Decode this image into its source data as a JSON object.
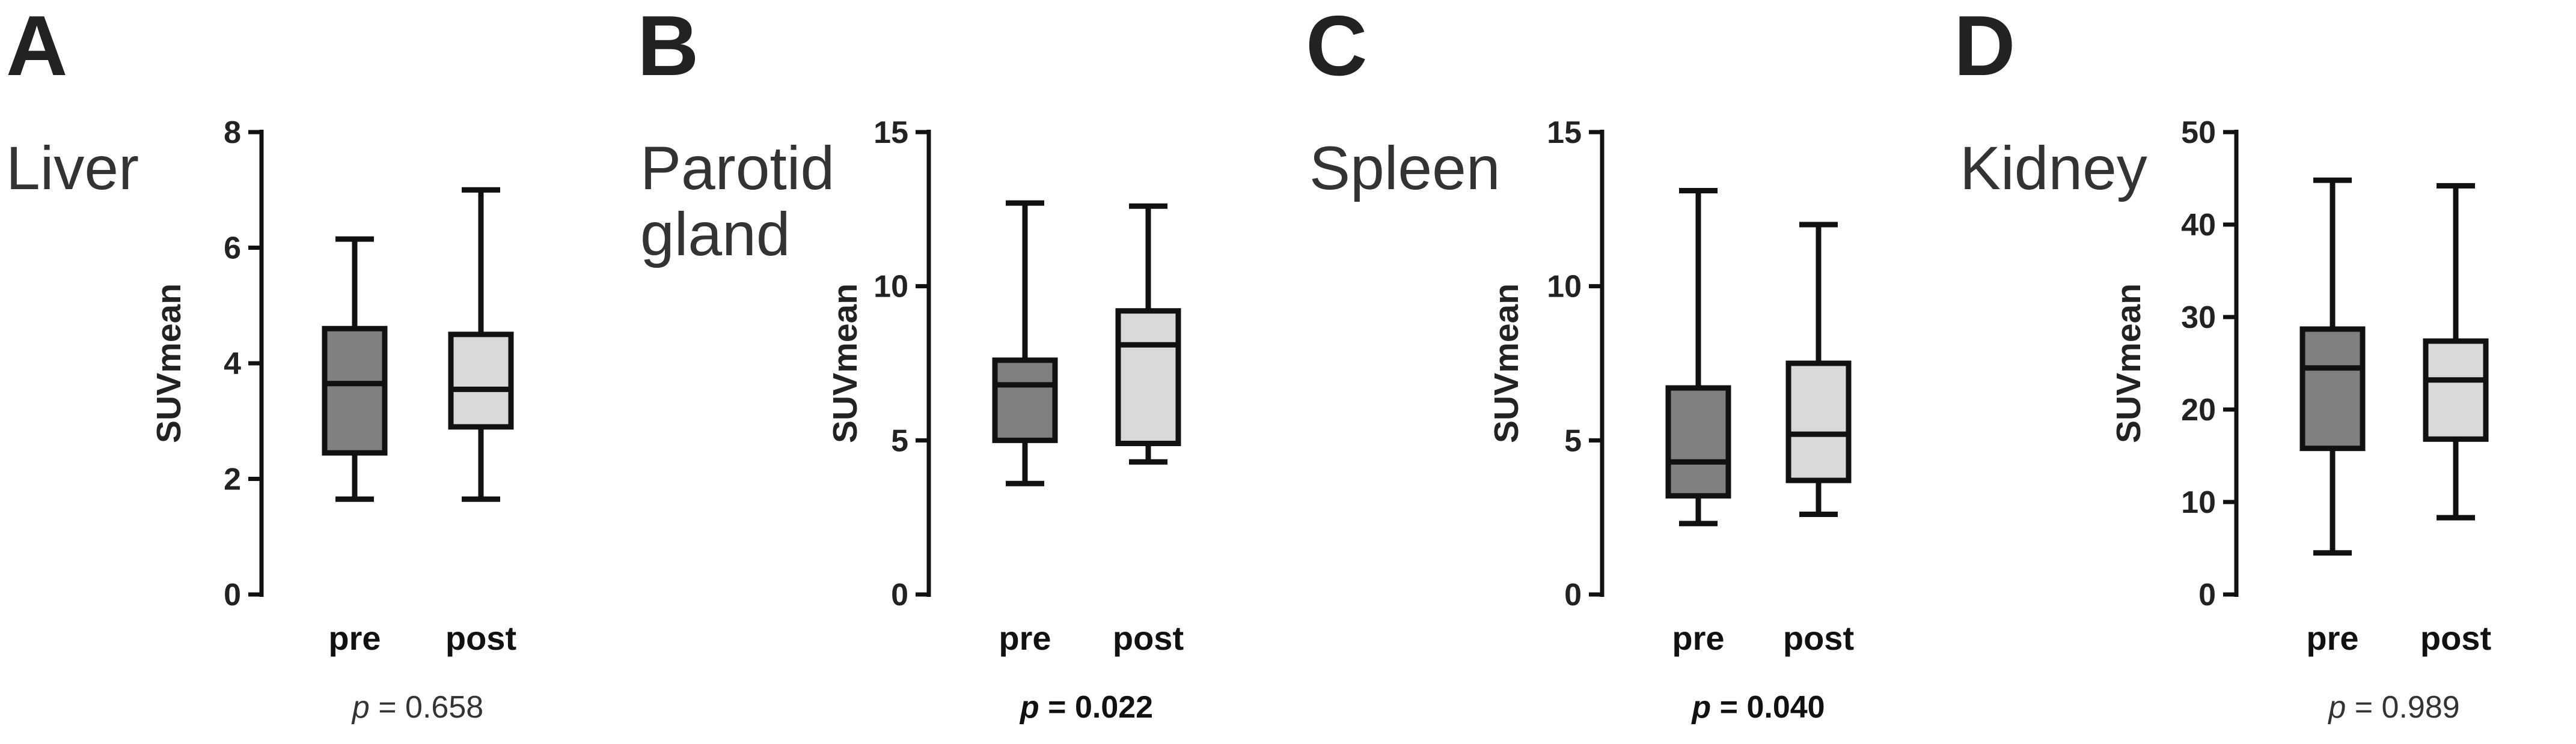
{
  "chart_data": [
    {
      "type": "box",
      "panel": "A",
      "title": "Liver",
      "ylabel": "SUVmean",
      "ylim": [
        0,
        8
      ],
      "yticks": [
        0,
        2,
        4,
        6,
        8
      ],
      "categories": [
        "pre",
        "post"
      ],
      "boxes": [
        {
          "category": "pre",
          "min": 1.65,
          "q1": 2.45,
          "median": 3.65,
          "q3": 4.6,
          "max": 6.15
        },
        {
          "category": "post",
          "min": 1.65,
          "q1": 2.9,
          "median": 3.55,
          "q3": 4.5,
          "max": 7.0
        }
      ],
      "p_label": "p",
      "p_text": " = 0.658",
      "p_significant": false
    },
    {
      "type": "box",
      "panel": "B",
      "title_lines": [
        "Parotid",
        "gland"
      ],
      "ylabel": "SUVmean",
      "ylim": [
        0,
        15
      ],
      "yticks": [
        0,
        5,
        10,
        15
      ],
      "categories": [
        "pre",
        "post"
      ],
      "boxes": [
        {
          "category": "pre",
          "min": 3.6,
          "q1": 5.0,
          "median": 6.8,
          "q3": 7.6,
          "max": 12.7
        },
        {
          "category": "post",
          "min": 4.3,
          "q1": 4.9,
          "median": 8.1,
          "q3": 9.2,
          "max": 12.6
        }
      ],
      "p_label": "p",
      "p_text": " = 0.022",
      "p_significant": true
    },
    {
      "type": "box",
      "panel": "C",
      "title": "Spleen",
      "ylabel": "SUVmean",
      "ylim": [
        0,
        15
      ],
      "yticks": [
        0,
        5,
        10,
        15
      ],
      "categories": [
        "pre",
        "post"
      ],
      "boxes": [
        {
          "category": "pre",
          "min": 2.3,
          "q1": 3.2,
          "median": 4.3,
          "q3": 6.7,
          "max": 13.1
        },
        {
          "category": "post",
          "min": 2.6,
          "q1": 3.7,
          "median": 5.2,
          "q3": 7.5,
          "max": 12.0
        }
      ],
      "p_label": "p",
      "p_text": " = 0.040",
      "p_significant": true
    },
    {
      "type": "box",
      "panel": "D",
      "title": "Kidney",
      "ylabel": "SUVmean",
      "ylim": [
        0,
        50
      ],
      "yticks": [
        0,
        10,
        20,
        30,
        40,
        50
      ],
      "categories": [
        "pre",
        "post"
      ],
      "boxes": [
        {
          "category": "pre",
          "min": 4.5,
          "q1": 15.8,
          "median": 24.5,
          "q3": 28.7,
          "max": 44.8
        },
        {
          "category": "post",
          "min": 8.3,
          "q1": 16.8,
          "median": 23.2,
          "q3": 27.4,
          "max": 44.2
        }
      ],
      "p_label": "p",
      "p_text": " = 0.989",
      "p_significant": false
    }
  ],
  "colors": {
    "pre_fill": "#808080",
    "post_fill": "#d9d9d9",
    "stroke": "#111111"
  }
}
